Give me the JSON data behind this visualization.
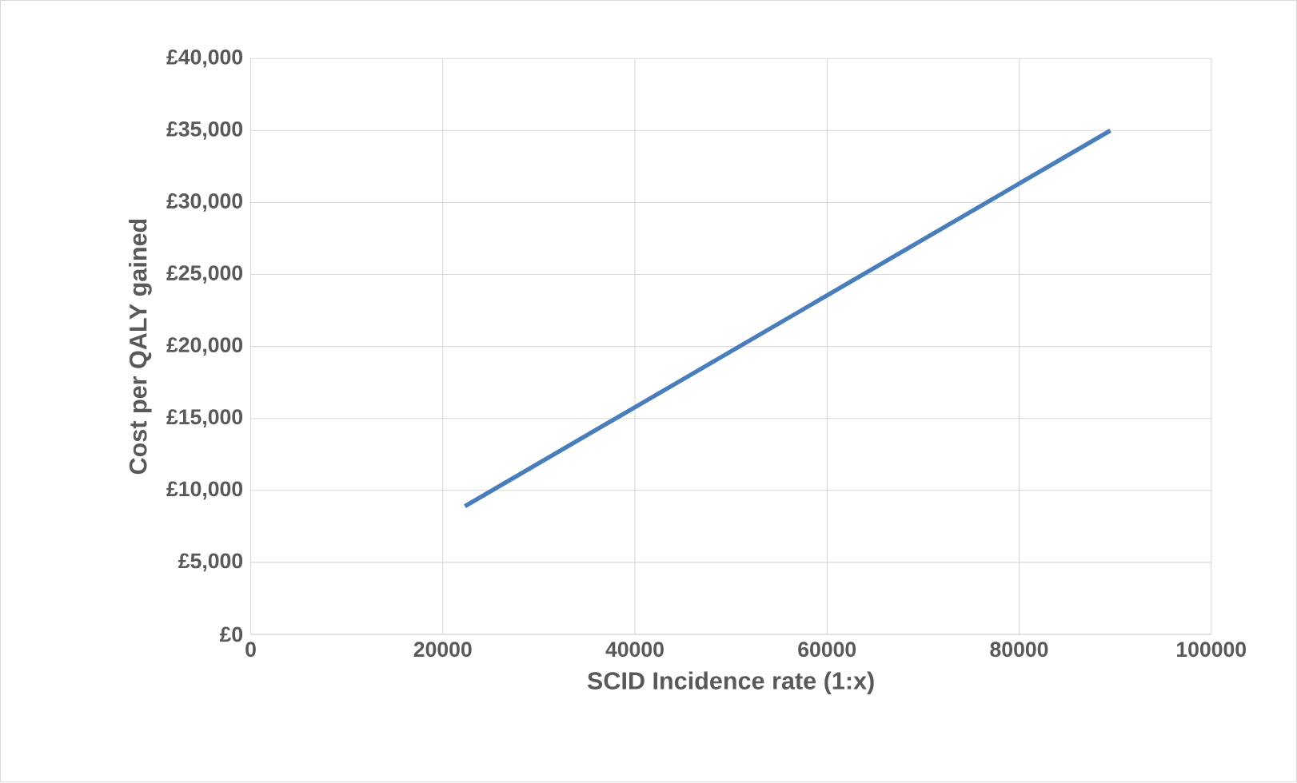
{
  "chart_data": {
    "type": "line",
    "xlabel": "SCID Incidence rate (1:x)",
    "ylabel": "Cost per QALY gained",
    "x": [
      22300,
      89500
    ],
    "series": [
      {
        "color": "#4a7ebb",
        "values": [
          8900,
          35000
        ]
      }
    ],
    "xlim": [
      0,
      100000
    ],
    "xticks": [
      0,
      20000,
      40000,
      60000,
      80000,
      100000
    ],
    "ylim": [
      0,
      40000
    ],
    "yticks": [
      {
        "value": 0,
        "label": "£0"
      },
      {
        "value": 5000,
        "label": "£5,000"
      },
      {
        "value": 10000,
        "label": "£10,000"
      },
      {
        "value": 15000,
        "label": "£15,000"
      },
      {
        "value": 20000,
        "label": "£20,000"
      },
      {
        "value": 25000,
        "label": "£25,000"
      },
      {
        "value": 30000,
        "label": "£30,000"
      },
      {
        "value": 35000,
        "label": "£35,000"
      },
      {
        "value": 40000,
        "label": "£40,000"
      }
    ],
    "grid": true,
    "marker": "none",
    "line_style": "solid"
  }
}
